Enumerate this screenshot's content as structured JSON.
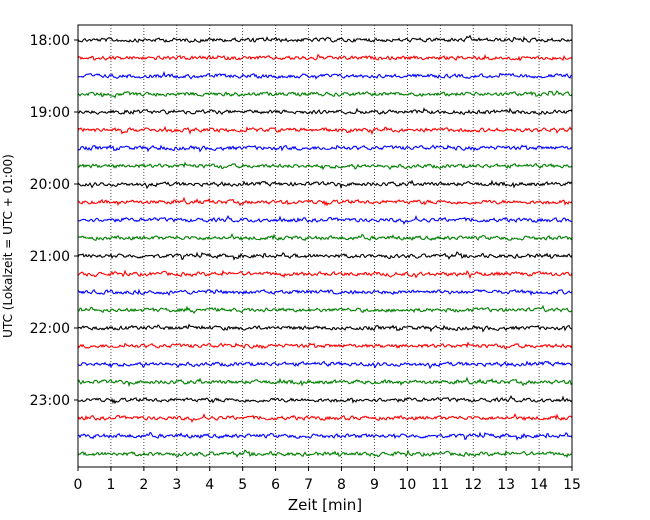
{
  "chart_data": {
    "type": "line",
    "title": "",
    "xlabel": "Zeit  [min]",
    "ylabel": "UTC (Lokalzeit = UTC + 01:00)",
    "xlim": [
      0,
      15
    ],
    "x_ticks": [
      "0",
      "1",
      "2",
      "3",
      "4",
      "5",
      "6",
      "7",
      "8",
      "9",
      "10",
      "11",
      "12",
      "13",
      "14",
      "15"
    ],
    "y_ticks": [
      "18:00",
      "19:00",
      "20:00",
      "21:00",
      "22:00",
      "23:00"
    ],
    "grid": "vertical dotted",
    "trace_interval_min": 15,
    "trace_colors": [
      "#000000",
      "#ff0000",
      "#0000ff",
      "#008000"
    ],
    "traces": [
      {
        "start": "18:00",
        "color": "#000000"
      },
      {
        "start": "18:15",
        "color": "#ff0000"
      },
      {
        "start": "18:30",
        "color": "#0000ff"
      },
      {
        "start": "18:45",
        "color": "#008000"
      },
      {
        "start": "19:00",
        "color": "#000000"
      },
      {
        "start": "19:15",
        "color": "#ff0000"
      },
      {
        "start": "19:30",
        "color": "#0000ff"
      },
      {
        "start": "19:45",
        "color": "#008000"
      },
      {
        "start": "20:00",
        "color": "#000000"
      },
      {
        "start": "20:15",
        "color": "#ff0000"
      },
      {
        "start": "20:30",
        "color": "#0000ff"
      },
      {
        "start": "20:45",
        "color": "#008000"
      },
      {
        "start": "21:00",
        "color": "#000000"
      },
      {
        "start": "21:15",
        "color": "#ff0000"
      },
      {
        "start": "21:30",
        "color": "#0000ff"
      },
      {
        "start": "21:45",
        "color": "#008000"
      },
      {
        "start": "22:00",
        "color": "#000000"
      },
      {
        "start": "22:15",
        "color": "#ff0000"
      },
      {
        "start": "22:30",
        "color": "#0000ff"
      },
      {
        "start": "22:45",
        "color": "#008000"
      },
      {
        "start": "23:00",
        "color": "#000000"
      },
      {
        "start": "23:15",
        "color": "#ff0000"
      },
      {
        "start": "23:30",
        "color": "#0000ff"
      },
      {
        "start": "23:45",
        "color": "#008000"
      }
    ]
  }
}
